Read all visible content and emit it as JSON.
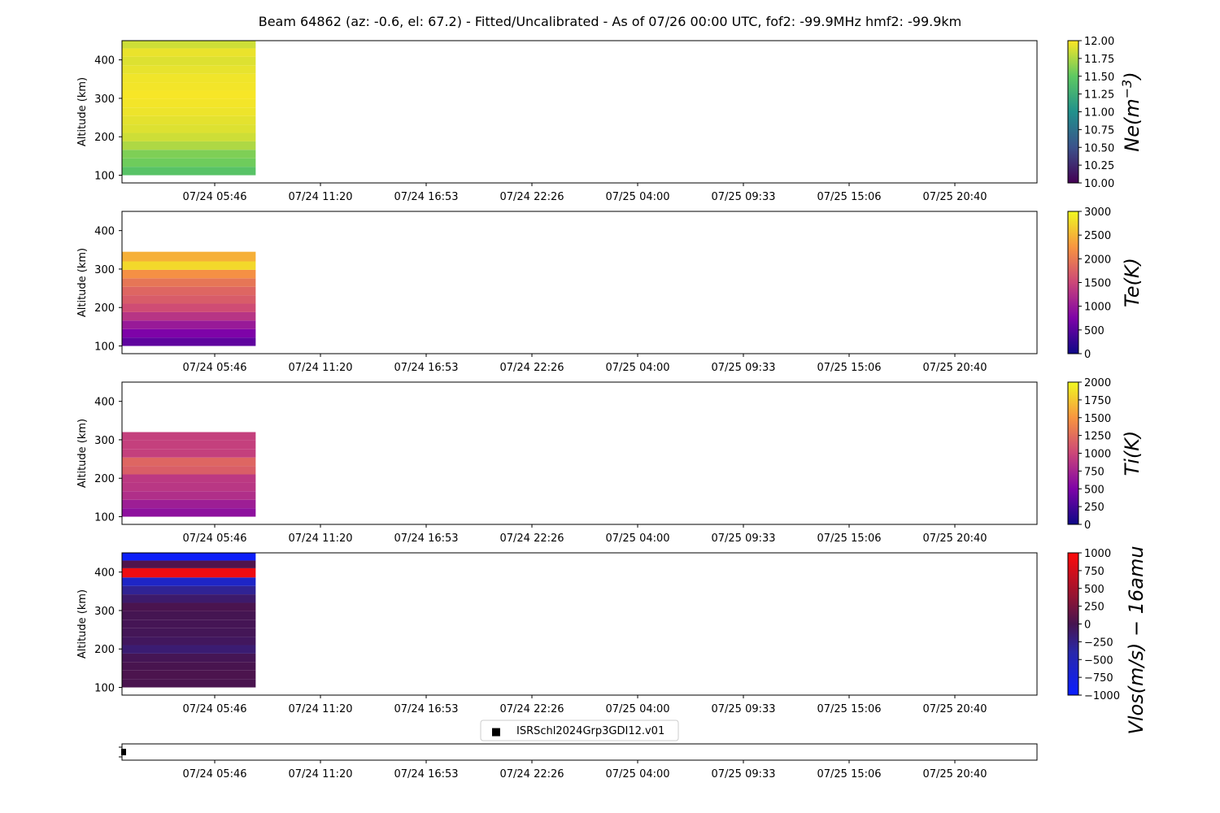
{
  "title": "Beam 64862 (az: -0.6, el: 67.2) - Fitted/Uncalibrated - As of 07/26 00:00 UTC, fof2: -99.9MHz  hmf2: -99.9km",
  "x_tick_labels": [
    "07/24 05:46",
    "07/24 11:20",
    "07/24 16:53",
    "07/24 22:26",
    "07/25 04:00",
    "07/25 09:33",
    "07/25 15:06",
    "07/25 20:40"
  ],
  "legend": {
    "marker": "■",
    "label": "ISRSchl2024Grp3GDI12.v01"
  },
  "chart_data": [
    {
      "type": "heatmap",
      "panel": "ne",
      "ylabel": "Altitude (km)",
      "ylim": [
        80,
        450
      ],
      "yticks": [
        100,
        200,
        300,
        400
      ],
      "colorbar": {
        "label": "Ne(m^-3)",
        "label_main": "Ne(m",
        "label_sup": "−3",
        "label_end": ")",
        "cmap": "viridis",
        "range": [
          10,
          12
        ],
        "ticks": [
          "10.00",
          "10.25",
          "10.50",
          "10.75",
          "11.00",
          "11.25",
          "11.50",
          "11.75",
          "12.00"
        ],
        "tick_values": [
          10,
          10.25,
          10.5,
          10.75,
          11,
          11.25,
          11.5,
          11.75,
          12
        ]
      },
      "column": {
        "time_range": [
          "07/24 00:12",
          "07/24 07:55"
        ],
        "altitude_bins": [
          [
            100,
            122,
            11.45
          ],
          [
            122,
            144,
            11.55
          ],
          [
            144,
            166,
            11.6
          ],
          [
            166,
            188,
            11.75
          ],
          [
            188,
            210,
            11.85
          ],
          [
            210,
            232,
            11.9
          ],
          [
            232,
            254,
            11.92
          ],
          [
            254,
            276,
            11.95
          ],
          [
            276,
            298,
            11.97
          ],
          [
            298,
            320,
            11.98
          ],
          [
            320,
            342,
            11.97
          ],
          [
            342,
            364,
            11.96
          ],
          [
            364,
            386,
            11.93
          ],
          [
            386,
            408,
            11.9
          ],
          [
            408,
            430,
            11.94
          ],
          [
            430,
            450,
            11.85
          ]
        ]
      }
    },
    {
      "type": "heatmap",
      "panel": "te",
      "ylabel": "Altitude (km)",
      "ylim": [
        80,
        450
      ],
      "yticks": [
        100,
        200,
        300,
        400
      ],
      "colorbar": {
        "label": "Te(K)",
        "label_main": "Te(K)",
        "label_sup": "",
        "label_end": "",
        "cmap": "plasma",
        "range": [
          0,
          3000
        ],
        "ticks": [
          "0",
          "500",
          "1000",
          "1500",
          "2000",
          "2500",
          "3000"
        ],
        "tick_values": [
          0,
          500,
          1000,
          1500,
          2000,
          2500,
          3000
        ]
      },
      "column": {
        "time_range": [
          "07/24 00:12",
          "07/24 07:55"
        ],
        "altitude_bins": [
          [
            100,
            122,
            550
          ],
          [
            122,
            144,
            750
          ],
          [
            144,
            166,
            1000
          ],
          [
            166,
            188,
            1300
          ],
          [
            188,
            210,
            1550
          ],
          [
            210,
            232,
            1700
          ],
          [
            232,
            254,
            1800
          ],
          [
            254,
            276,
            1950
          ],
          [
            276,
            298,
            2200
          ],
          [
            298,
            320,
            2750
          ],
          [
            320,
            345,
            2450
          ]
        ]
      }
    },
    {
      "type": "heatmap",
      "panel": "ti",
      "ylabel": "Altitude (km)",
      "ylim": [
        80,
        450
      ],
      "yticks": [
        100,
        200,
        300,
        400
      ],
      "colorbar": {
        "label": "Ti(K)",
        "label_main": "Ti(K)",
        "label_sup": "",
        "label_end": "",
        "cmap": "plasma",
        "range": [
          0,
          2000
        ],
        "ticks": [
          "0",
          "250",
          "500",
          "750",
          "1000",
          "1250",
          "1500",
          "1750",
          "2000"
        ],
        "tick_values": [
          0,
          250,
          500,
          750,
          1000,
          1250,
          1500,
          1750,
          2000
        ]
      },
      "column": {
        "time_range": [
          "07/24 00:12",
          "07/24 07:55"
        ],
        "altitude_bins": [
          [
            100,
            122,
            600
          ],
          [
            122,
            144,
            700
          ],
          [
            144,
            166,
            820
          ],
          [
            166,
            188,
            880
          ],
          [
            188,
            210,
            900
          ],
          [
            210,
            232,
            1150
          ],
          [
            232,
            254,
            1200
          ],
          [
            254,
            276,
            950
          ],
          [
            276,
            298,
            950
          ],
          [
            298,
            320,
            950
          ]
        ]
      }
    },
    {
      "type": "heatmap",
      "panel": "vlos",
      "ylabel": "Altitude (km)",
      "ylim": [
        80,
        450
      ],
      "yticks": [
        100,
        200,
        300,
        400
      ],
      "colorbar": {
        "label": "Vlos(m/s) − 16amu",
        "label_main": "Vlos(m/s) − 16amu",
        "label_sup": "",
        "label_end": "",
        "cmap": "bwr-dark",
        "range": [
          -1000,
          1000
        ],
        "ticks": [
          "−1000",
          "−750",
          "−500",
          "−250",
          "0",
          "250",
          "500",
          "750",
          "1000"
        ],
        "tick_values": [
          -1000,
          -750,
          -500,
          -250,
          0,
          250,
          500,
          750,
          1000
        ]
      },
      "column": {
        "time_range": [
          "07/24 00:12",
          "07/24 07:55"
        ],
        "altitude_bins": [
          [
            100,
            122,
            20
          ],
          [
            122,
            144,
            30
          ],
          [
            144,
            166,
            10
          ],
          [
            166,
            188,
            -20
          ],
          [
            188,
            210,
            -150
          ],
          [
            210,
            232,
            -60
          ],
          [
            232,
            254,
            -30
          ],
          [
            254,
            276,
            -20
          ],
          [
            276,
            298,
            -10
          ],
          [
            298,
            320,
            20
          ],
          [
            320,
            342,
            -120
          ],
          [
            342,
            364,
            -300
          ],
          [
            364,
            386,
            -600
          ],
          [
            386,
            410,
            900
          ],
          [
            410,
            430,
            50
          ],
          [
            430,
            450,
            -950
          ]
        ]
      }
    }
  ]
}
